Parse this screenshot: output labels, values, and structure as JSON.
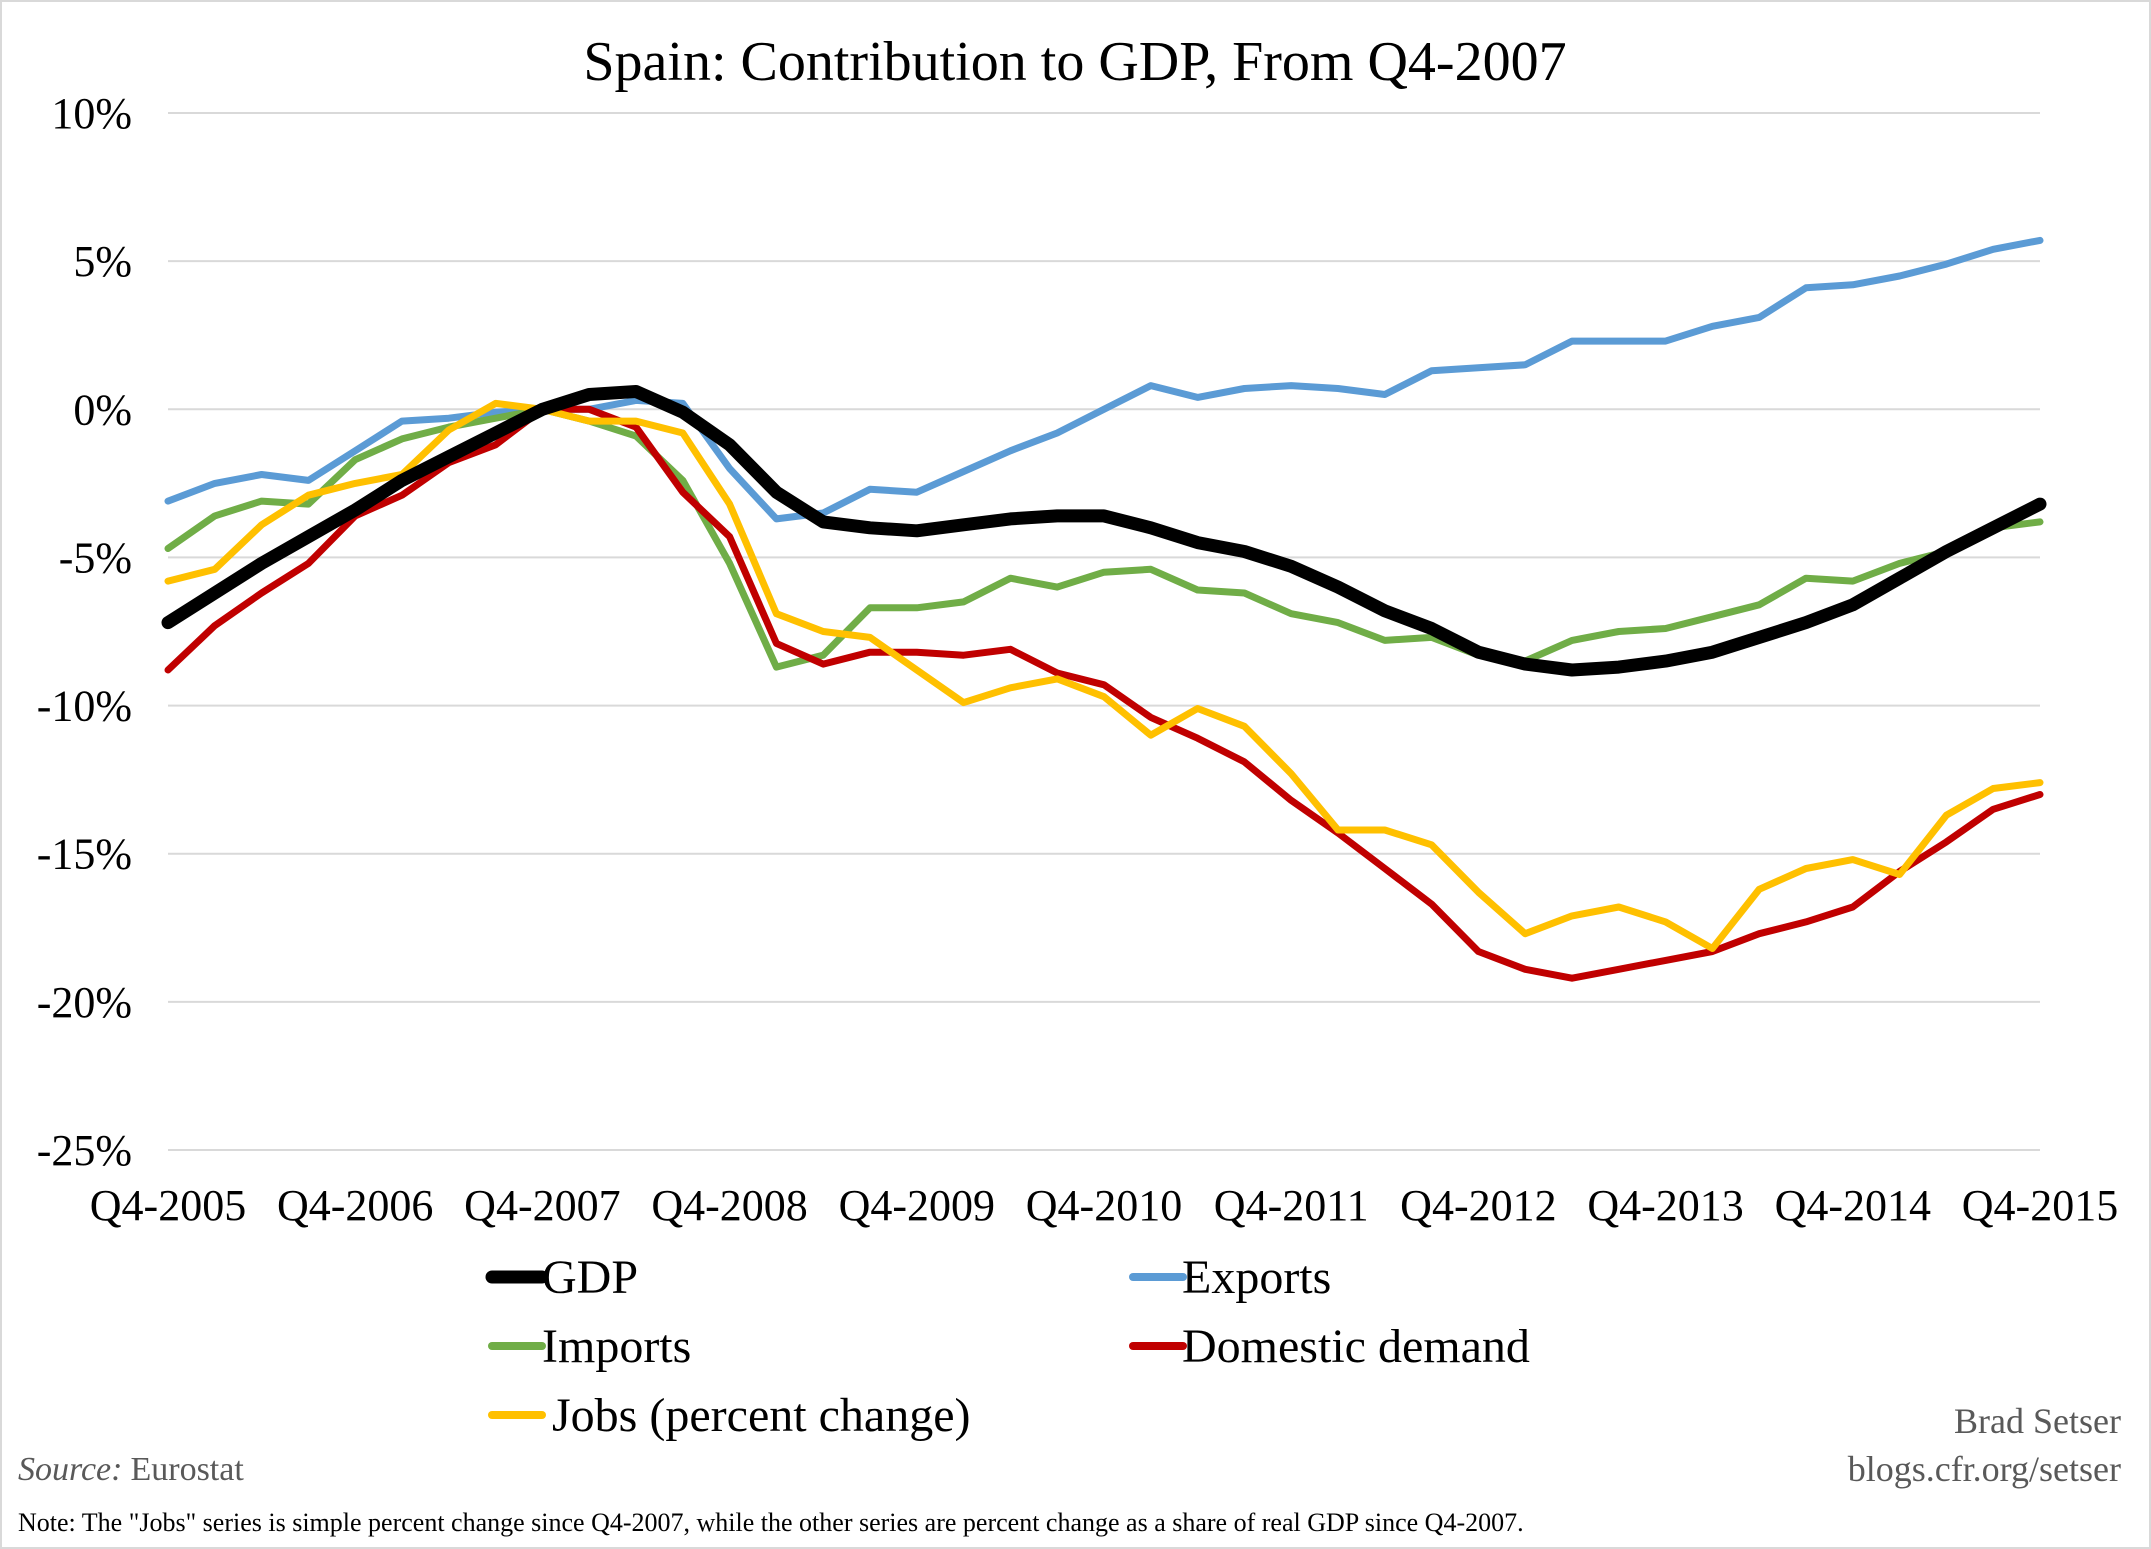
{
  "chart_data": {
    "type": "line",
    "title": "Spain: Contribution to GDP, From Q4-2007",
    "xlabel": "",
    "ylabel": "",
    "x": [
      "Q4-2005",
      "Q1-2006",
      "Q2-2006",
      "Q3-2006",
      "Q4-2006",
      "Q1-2007",
      "Q2-2007",
      "Q3-2007",
      "Q4-2007",
      "Q1-2008",
      "Q2-2008",
      "Q3-2008",
      "Q4-2008",
      "Q1-2009",
      "Q2-2009",
      "Q3-2009",
      "Q4-2009",
      "Q1-2010",
      "Q2-2010",
      "Q3-2010",
      "Q4-2010",
      "Q1-2011",
      "Q2-2011",
      "Q3-2011",
      "Q4-2011",
      "Q1-2012",
      "Q2-2012",
      "Q3-2012",
      "Q4-2012",
      "Q1-2013",
      "Q2-2013",
      "Q3-2013",
      "Q4-2013",
      "Q1-2014",
      "Q2-2014",
      "Q3-2014",
      "Q4-2014",
      "Q1-2015",
      "Q2-2015",
      "Q3-2015",
      "Q4-2015"
    ],
    "x_tick_labels": [
      "Q4-2005",
      "Q4-2006",
      "Q4-2007",
      "Q4-2008",
      "Q4-2009",
      "Q4-2010",
      "Q4-2011",
      "Q4-2012",
      "Q4-2013",
      "Q4-2014",
      "Q4-2015"
    ],
    "x_tick_every": 4,
    "ylim": [
      -25,
      10
    ],
    "y_ticks": [
      10,
      5,
      0,
      -5,
      -10,
      -15,
      -20,
      -25
    ],
    "y_tick_labels": [
      "10%",
      "5%",
      "0%",
      "-5%",
      "-10%",
      "-15%",
      "-20%",
      "-25%"
    ],
    "grid": true,
    "legend_position": "bottom",
    "series": [
      {
        "name": "GDP",
        "color": "#000000",
        "values": [
          -7.2,
          -6.2,
          -5.2,
          -4.3,
          -3.4,
          -2.4,
          -1.6,
          -0.8,
          0.0,
          0.5,
          0.6,
          -0.1,
          -1.2,
          -2.8,
          -3.8,
          -4.0,
          -4.1,
          -3.9,
          -3.7,
          -3.6,
          -3.6,
          -4.0,
          -4.5,
          -4.8,
          -5.3,
          -6.0,
          -6.8,
          -7.4,
          -8.2,
          -8.6,
          -8.8,
          -8.7,
          -8.5,
          -8.2,
          -7.7,
          -7.2,
          -6.6,
          -5.7,
          -4.8,
          -4.0,
          -3.2
        ]
      },
      {
        "name": "Exports",
        "color": "#5b9bd5",
        "values": [
          -3.1,
          -2.5,
          -2.2,
          -2.4,
          -1.4,
          -0.4,
          -0.3,
          -0.1,
          0.0,
          0.0,
          0.3,
          0.2,
          -2.0,
          -3.7,
          -3.5,
          -2.7,
          -2.8,
          -2.1,
          -1.4,
          -0.8,
          0.0,
          0.8,
          0.4,
          0.7,
          0.8,
          0.7,
          0.5,
          1.3,
          1.4,
          1.5,
          2.3,
          2.3,
          2.3,
          2.8,
          3.1,
          4.1,
          4.2,
          4.5,
          4.9,
          5.4,
          5.7
        ]
      },
      {
        "name": "Imports",
        "color": "#70ad47",
        "values": [
          -4.7,
          -3.6,
          -3.1,
          -3.2,
          -1.7,
          -1.0,
          -0.6,
          -0.3,
          0.0,
          -0.4,
          -0.9,
          -2.4,
          -5.2,
          -8.7,
          -8.3,
          -6.7,
          -6.7,
          -6.5,
          -5.7,
          -6.0,
          -5.5,
          -5.4,
          -6.1,
          -6.2,
          -6.9,
          -7.2,
          -7.8,
          -7.7,
          -8.3,
          -8.5,
          -7.8,
          -7.5,
          -7.4,
          -7.0,
          -6.6,
          -5.7,
          -5.8,
          -5.2,
          -4.8,
          -4.0,
          -3.8
        ]
      },
      {
        "name": "Domestic demand",
        "color": "#c00000",
        "values": [
          -8.8,
          -7.3,
          -6.2,
          -5.2,
          -3.6,
          -2.9,
          -1.8,
          -1.2,
          0.0,
          0.0,
          -0.6,
          -2.8,
          -4.3,
          -7.9,
          -8.6,
          -8.2,
          -8.2,
          -8.3,
          -8.1,
          -8.9,
          -9.3,
          -10.4,
          -11.1,
          -11.9,
          -13.2,
          -14.3,
          -15.5,
          -16.7,
          -18.3,
          -18.9,
          -19.2,
          -18.9,
          -18.6,
          -18.3,
          -17.7,
          -17.3,
          -16.8,
          -15.6,
          -14.6,
          -13.5,
          -13.0
        ]
      },
      {
        "name": "Jobs (percent change)",
        "color": "#ffc000",
        "values": [
          -5.8,
          -5.4,
          -3.9,
          -2.9,
          -2.5,
          -2.2,
          -0.7,
          0.2,
          0.0,
          -0.4,
          -0.4,
          -0.8,
          -3.2,
          -6.9,
          -7.5,
          -7.7,
          -8.8,
          -9.9,
          -9.4,
          -9.1,
          -9.7,
          -11.0,
          -10.1,
          -10.7,
          -12.3,
          -14.2,
          -14.2,
          -14.7,
          -16.3,
          -17.7,
          -17.1,
          -16.8,
          -17.3,
          -18.2,
          -16.2,
          -15.5,
          -15.2,
          -15.7,
          -13.7,
          -12.8,
          -12.6
        ]
      }
    ]
  },
  "credit": {
    "author": "Brad Setser",
    "site": "blogs.cfr.org/setser"
  },
  "source": {
    "label": "Source:",
    "value": "Eurostat"
  },
  "note": "Note: The \"Jobs\" series is simple percent change since Q4-2007, while the other series are percent change as a share of real GDP since Q4-2007."
}
